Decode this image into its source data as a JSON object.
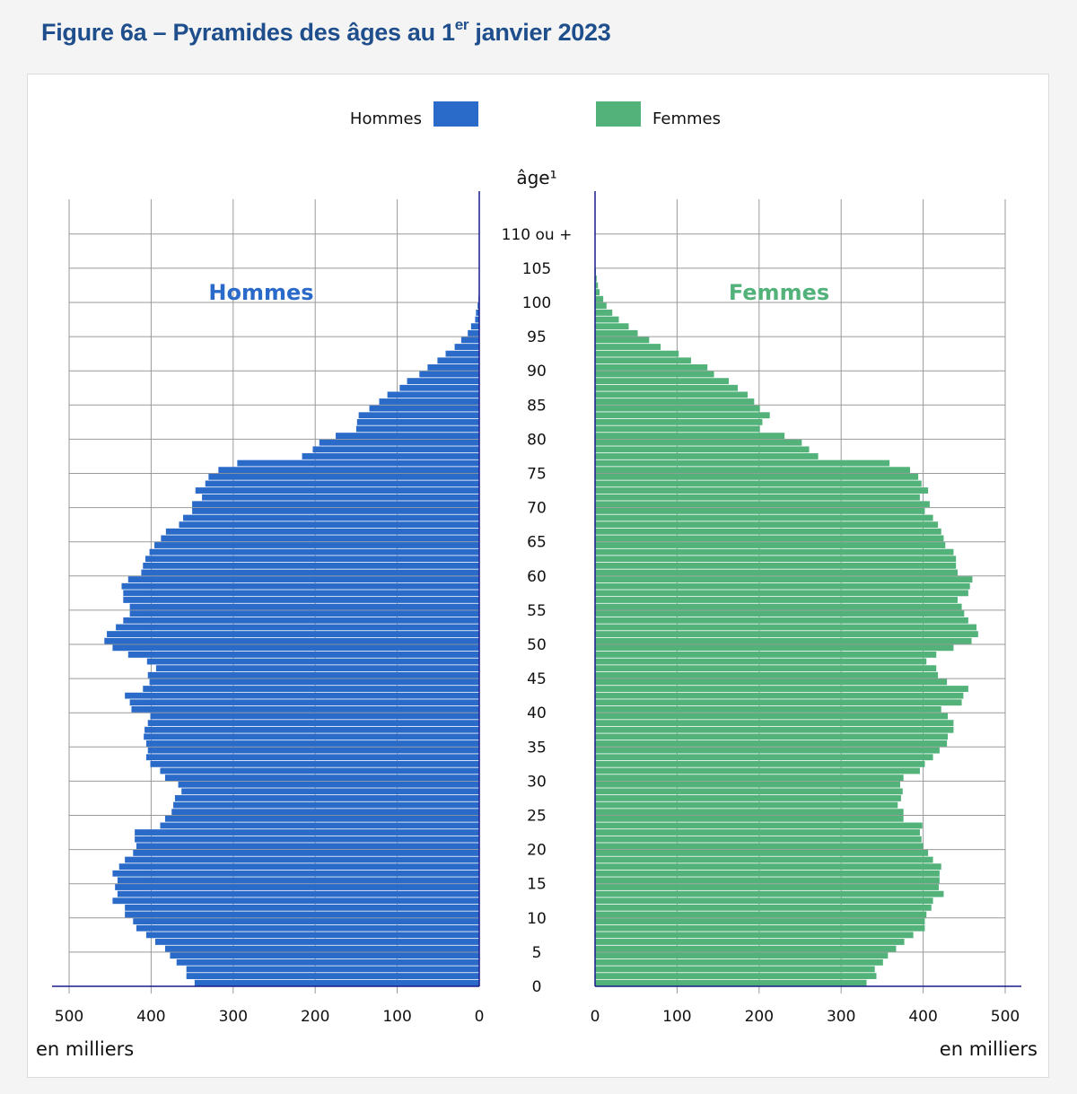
{
  "title": {
    "prefix": "Figure 6a – Pyramides des âges au 1",
    "sup": "er",
    "suffix": " janvier 2023"
  },
  "colors": {
    "men": "#2a6ac8",
    "women": "#52b27a",
    "title": "#1f4e8c",
    "axis": "#1a1a8c"
  },
  "chart_data": {
    "type": "bar",
    "orientation": "horizontal-pyramid",
    "legend": {
      "placement": "top",
      "entries": [
        "Hommes",
        "Femmes"
      ]
    },
    "panel_labels": {
      "men": "Hommes",
      "women": "Femmes"
    },
    "age_axis_label": "âge¹",
    "age_tick_labels": [
      "0",
      "5",
      "10",
      "15",
      "20",
      "25",
      "30",
      "35",
      "40",
      "45",
      "50",
      "55",
      "60",
      "65",
      "70",
      "75",
      "80",
      "85",
      "90",
      "95",
      "100",
      "105",
      "110 ou +"
    ],
    "value_tick_labels": [
      "0",
      "100",
      "200",
      "300",
      "400",
      "500"
    ],
    "unit_label": "en milliers",
    "xlim": [
      0,
      500
    ],
    "grid": true,
    "ages_from": 0,
    "series": [
      {
        "name": "Hommes",
        "values": [
          347,
          357,
          357,
          369,
          377,
          383,
          395,
          406,
          418,
          422,
          432,
          432,
          447,
          441,
          444,
          441,
          447,
          439,
          432,
          422,
          418,
          420,
          420,
          389,
          383,
          375,
          373,
          371,
          363,
          367,
          383,
          389,
          401,
          406,
          404,
          406,
          409,
          408,
          404,
          401,
          424,
          426,
          432,
          410,
          402,
          404,
          394,
          405,
          428,
          447,
          457,
          454,
          443,
          434,
          426,
          426,
          434,
          434,
          436,
          428,
          412,
          410,
          407,
          402,
          396,
          388,
          382,
          366,
          361,
          350,
          350,
          338,
          346,
          334,
          330,
          318,
          295,
          216,
          203,
          195,
          175,
          150,
          149,
          147,
          134,
          122,
          112,
          97,
          88,
          73,
          63,
          51,
          41,
          30,
          22,
          14,
          10,
          5,
          4,
          2,
          1,
          0.6,
          0.4,
          0.2,
          0.1,
          0.1
        ]
      },
      {
        "name": "Femmes",
        "values": [
          331,
          343,
          341,
          351,
          357,
          367,
          377,
          388,
          402,
          402,
          404,
          410,
          412,
          425,
          419,
          420,
          420,
          422,
          412,
          406,
          400,
          398,
          396,
          399,
          376,
          376,
          369,
          373,
          375,
          372,
          376,
          396,
          402,
          412,
          420,
          429,
          430,
          437,
          437,
          430,
          422,
          447,
          449,
          455,
          429,
          418,
          416,
          404,
          416,
          437,
          459,
          467,
          465,
          455,
          450,
          447,
          442,
          455,
          457,
          460,
          442,
          440,
          440,
          437,
          427,
          425,
          422,
          418,
          412,
          402,
          408,
          396,
          406,
          398,
          394,
          384,
          359,
          272,
          261,
          252,
          231,
          201,
          204,
          213,
          201,
          194,
          186,
          174,
          163,
          145,
          137,
          117,
          102,
          80,
          66,
          52,
          41,
          29,
          21,
          14,
          10,
          5.5,
          3.6,
          2,
          1,
          0.5
        ]
      }
    ]
  }
}
